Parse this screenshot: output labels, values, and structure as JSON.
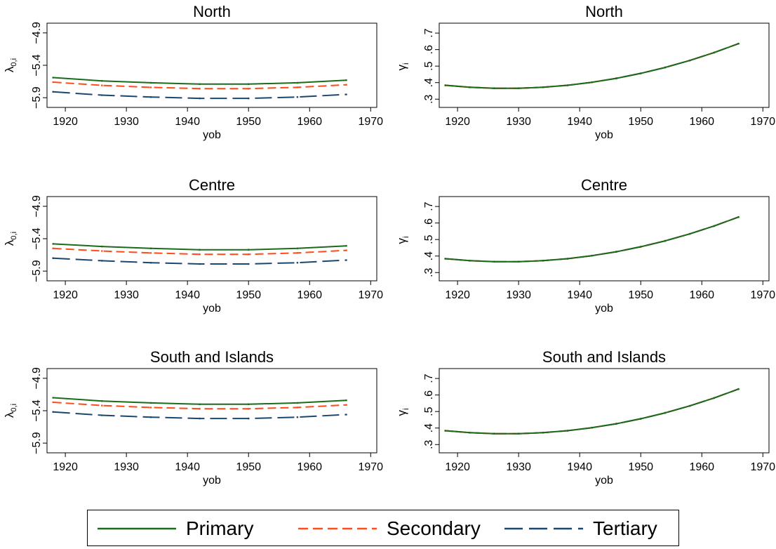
{
  "figure": {
    "x_tick_labels": [
      "1920",
      "1930",
      "1940",
      "1950",
      "1960",
      "1970"
    ],
    "x_label": "yob",
    "lambda_axis_label": "λ",
    "lambda_axis_subscript": "0,i",
    "lambda_tick_labels": [
      "−5.9",
      "−5.4",
      "−4.9"
    ],
    "gamma_axis_label": "γ",
    "gamma_axis_subscript": "i",
    "gamma_tick_labels": [
      ".3",
      ".4",
      ".5",
      ".6",
      ".7"
    ]
  },
  "legend": {
    "items": [
      {
        "label": "Primary",
        "color": "#1a6b1a",
        "dash": "solid"
      },
      {
        "label": "Secondary",
        "color": "#ff4c1a",
        "dash": "short-dash"
      },
      {
        "label": "Tertiary",
        "color": "#1a476f",
        "dash": "long-dash"
      }
    ]
  },
  "chart_data": [
    {
      "type": "line",
      "title": "North",
      "xlabel": "yob",
      "ylabel": "λ0,i",
      "xlim": [
        1917,
        1971
      ],
      "ylim": [
        -6.05,
        -4.75
      ],
      "yticks": [
        -5.9,
        -5.4,
        -4.9
      ],
      "x": [
        1918,
        1926,
        1934,
        1942,
        1950,
        1958,
        1966
      ],
      "series": [
        {
          "name": "Primary",
          "color": "#1a6b1a",
          "dash": "solid",
          "values": [
            -5.59,
            -5.64,
            -5.67,
            -5.69,
            -5.69,
            -5.67,
            -5.63
          ]
        },
        {
          "name": "Secondary",
          "color": "#ff4c1a",
          "dash": "short-dash",
          "values": [
            -5.66,
            -5.71,
            -5.74,
            -5.76,
            -5.76,
            -5.74,
            -5.7
          ]
        },
        {
          "name": "Tertiary",
          "color": "#1a476f",
          "dash": "long-dash",
          "values": [
            -5.81,
            -5.86,
            -5.89,
            -5.91,
            -5.91,
            -5.89,
            -5.85
          ]
        }
      ]
    },
    {
      "type": "line",
      "title": "North",
      "xlabel": "yob",
      "ylabel": "γi",
      "xlim": [
        1917,
        1971
      ],
      "ylim": [
        0.25,
        0.76
      ],
      "yticks": [
        0.3,
        0.4,
        0.5,
        0.6,
        0.7
      ],
      "x": [
        1918,
        1922,
        1926,
        1930,
        1934,
        1938,
        1942,
        1946,
        1950,
        1954,
        1958,
        1962,
        1966
      ],
      "series": [
        {
          "name": "Primary",
          "color": "#1a6b1a",
          "dash": "solid",
          "values": [
            0.384,
            0.372,
            0.366,
            0.366,
            0.372,
            0.384,
            0.402,
            0.426,
            0.456,
            0.492,
            0.534,
            0.582,
            0.636
          ]
        },
        {
          "name": "Secondary",
          "color": "#ff4c1a",
          "dash": "short-dash",
          "values": [
            0.384,
            0.372,
            0.366,
            0.366,
            0.372,
            0.384,
            0.402,
            0.426,
            0.456,
            0.492,
            0.534,
            0.582,
            0.636
          ]
        },
        {
          "name": "Tertiary",
          "color": "#1a476f",
          "dash": "long-dash",
          "values": [
            0.384,
            0.372,
            0.366,
            0.366,
            0.372,
            0.384,
            0.402,
            0.426,
            0.456,
            0.492,
            0.534,
            0.582,
            0.636
          ]
        }
      ]
    },
    {
      "type": "line",
      "title": "Centre",
      "xlabel": "yob",
      "ylabel": "λ0,i",
      "xlim": [
        1917,
        1971
      ],
      "ylim": [
        -6.05,
        -4.75
      ],
      "yticks": [
        -5.9,
        -5.4,
        -4.9
      ],
      "x": [
        1918,
        1926,
        1934,
        1942,
        1950,
        1958,
        1966
      ],
      "series": [
        {
          "name": "Primary",
          "color": "#1a6b1a",
          "dash": "solid",
          "values": [
            -5.48,
            -5.52,
            -5.55,
            -5.57,
            -5.57,
            -5.55,
            -5.51
          ]
        },
        {
          "name": "Secondary",
          "color": "#ff4c1a",
          "dash": "short-dash",
          "values": [
            -5.55,
            -5.59,
            -5.62,
            -5.64,
            -5.64,
            -5.62,
            -5.58
          ]
        },
        {
          "name": "Tertiary",
          "color": "#1a476f",
          "dash": "long-dash",
          "values": [
            -5.7,
            -5.74,
            -5.77,
            -5.79,
            -5.79,
            -5.77,
            -5.73
          ]
        }
      ]
    },
    {
      "type": "line",
      "title": "Centre",
      "xlabel": "yob",
      "ylabel": "γi",
      "xlim": [
        1917,
        1971
      ],
      "ylim": [
        0.25,
        0.76
      ],
      "yticks": [
        0.3,
        0.4,
        0.5,
        0.6,
        0.7
      ],
      "x": [
        1918,
        1922,
        1926,
        1930,
        1934,
        1938,
        1942,
        1946,
        1950,
        1954,
        1958,
        1962,
        1966
      ],
      "series": [
        {
          "name": "Primary",
          "color": "#1a6b1a",
          "dash": "solid",
          "values": [
            0.384,
            0.372,
            0.366,
            0.366,
            0.372,
            0.384,
            0.402,
            0.426,
            0.456,
            0.492,
            0.534,
            0.582,
            0.636
          ]
        },
        {
          "name": "Secondary",
          "color": "#ff4c1a",
          "dash": "short-dash",
          "values": [
            0.384,
            0.372,
            0.366,
            0.366,
            0.372,
            0.384,
            0.402,
            0.426,
            0.456,
            0.492,
            0.534,
            0.582,
            0.636
          ]
        },
        {
          "name": "Tertiary",
          "color": "#1a476f",
          "dash": "long-dash",
          "values": [
            0.384,
            0.372,
            0.366,
            0.366,
            0.372,
            0.384,
            0.402,
            0.426,
            0.456,
            0.492,
            0.534,
            0.582,
            0.636
          ]
        }
      ]
    },
    {
      "type": "line",
      "title": "South and Islands",
      "xlabel": "yob",
      "ylabel": "λ0,i",
      "xlim": [
        1917,
        1971
      ],
      "ylim": [
        -6.05,
        -4.75
      ],
      "yticks": [
        -5.9,
        -5.4,
        -4.9
      ],
      "x": [
        1918,
        1926,
        1934,
        1942,
        1950,
        1958,
        1966
      ],
      "series": [
        {
          "name": "Primary",
          "color": "#1a6b1a",
          "dash": "solid",
          "values": [
            -5.2,
            -5.25,
            -5.28,
            -5.3,
            -5.3,
            -5.28,
            -5.24
          ]
        },
        {
          "name": "Secondary",
          "color": "#ff4c1a",
          "dash": "short-dash",
          "values": [
            -5.27,
            -5.32,
            -5.35,
            -5.37,
            -5.37,
            -5.35,
            -5.31
          ]
        },
        {
          "name": "Tertiary",
          "color": "#1a476f",
          "dash": "long-dash",
          "values": [
            -5.42,
            -5.47,
            -5.5,
            -5.52,
            -5.52,
            -5.5,
            -5.46
          ]
        }
      ]
    },
    {
      "type": "line",
      "title": "South and Islands",
      "xlabel": "yob",
      "ylabel": "γi",
      "xlim": [
        1917,
        1971
      ],
      "ylim": [
        0.25,
        0.76
      ],
      "yticks": [
        0.3,
        0.4,
        0.5,
        0.6,
        0.7
      ],
      "x": [
        1918,
        1922,
        1926,
        1930,
        1934,
        1938,
        1942,
        1946,
        1950,
        1954,
        1958,
        1962,
        1966
      ],
      "series": [
        {
          "name": "Primary",
          "color": "#1a6b1a",
          "dash": "solid",
          "values": [
            0.384,
            0.372,
            0.366,
            0.366,
            0.372,
            0.384,
            0.402,
            0.426,
            0.456,
            0.492,
            0.534,
            0.582,
            0.636
          ]
        },
        {
          "name": "Secondary",
          "color": "#ff4c1a",
          "dash": "short-dash",
          "values": [
            0.384,
            0.372,
            0.366,
            0.366,
            0.372,
            0.384,
            0.402,
            0.426,
            0.456,
            0.492,
            0.534,
            0.582,
            0.636
          ]
        },
        {
          "name": "Tertiary",
          "color": "#1a476f",
          "dash": "long-dash",
          "values": [
            0.384,
            0.372,
            0.366,
            0.366,
            0.372,
            0.384,
            0.402,
            0.426,
            0.456,
            0.492,
            0.534,
            0.582,
            0.636
          ]
        }
      ]
    }
  ]
}
